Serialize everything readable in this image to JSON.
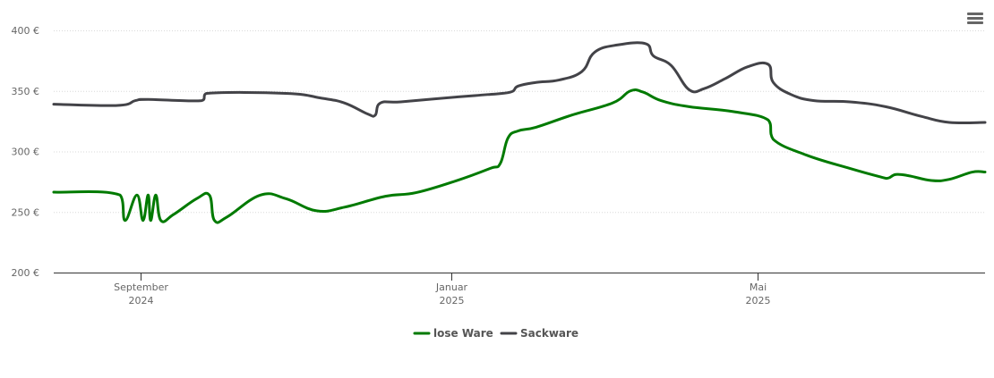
{
  "chart_data": {
    "type": "line",
    "title": "",
    "xlabel": "",
    "ylabel": "",
    "y_unit": "€",
    "ylim": [
      200,
      400
    ],
    "yticks": [
      200,
      250,
      300,
      350,
      400
    ],
    "ytick_labels": [
      "200 €",
      "250 €",
      "300 €",
      "350 €",
      "400 €"
    ],
    "xlim": [
      "2024-07-29",
      "2025-07-29"
    ],
    "xticks": [
      {
        "date": "2024-09-01",
        "month": "September",
        "year": "2024"
      },
      {
        "date": "2025-01-01",
        "month": "Januar",
        "year": "2025"
      },
      {
        "date": "2025-05-01",
        "month": "Mai",
        "year": "2025"
      }
    ],
    "grid": true,
    "legend_position": "bottom-center",
    "x_unit": "days since 2024-09-01",
    "series": [
      {
        "name": "lose Ware",
        "color": "#007a00",
        "points": [
          [
            -34,
            266.4
          ],
          [
            -8,
            264
          ],
          [
            -6,
            243
          ],
          [
            -1.4,
            264
          ],
          [
            1,
            243
          ],
          [
            3,
            264
          ],
          [
            4,
            243
          ],
          [
            6,
            264
          ],
          [
            8,
            243
          ],
          [
            13,
            248
          ],
          [
            22,
            261
          ],
          [
            27,
            264
          ],
          [
            29,
            243
          ],
          [
            34,
            246
          ],
          [
            47,
            264
          ],
          [
            57,
            261
          ],
          [
            69,
            251
          ],
          [
            80,
            254
          ],
          [
            96,
            263
          ],
          [
            108,
            266
          ],
          [
            124,
            276
          ],
          [
            137,
            286
          ],
          [
            141,
            290
          ],
          [
            144,
            311
          ],
          [
            148,
            317
          ],
          [
            155,
            320
          ],
          [
            169,
            330
          ],
          [
            185,
            340
          ],
          [
            192,
            350
          ],
          [
            197,
            349
          ],
          [
            204,
            342
          ],
          [
            215,
            337
          ],
          [
            232,
            333
          ],
          [
            246,
            326
          ],
          [
            248,
            310
          ],
          [
            261,
            297
          ],
          [
            278,
            286
          ],
          [
            290,
            279
          ],
          [
            293,
            278
          ],
          [
            296,
            281
          ],
          [
            301,
            280
          ],
          [
            310,
            276
          ],
          [
            317,
            277
          ],
          [
            326,
            283
          ],
          [
            331,
            283
          ]
        ]
      },
      {
        "name": "Sackware",
        "color": "#434348",
        "points": [
          [
            -34,
            339
          ],
          [
            -9,
            338
          ],
          [
            -2,
            342
          ],
          [
            3,
            343
          ],
          [
            24,
            342
          ],
          [
            26,
            348
          ],
          [
            57,
            348
          ],
          [
            71,
            344
          ],
          [
            80,
            340
          ],
          [
            89,
            331
          ],
          [
            92,
            330
          ],
          [
            94,
            340
          ],
          [
            102,
            341
          ],
          [
            124,
            345
          ],
          [
            136,
            347
          ],
          [
            145,
            349
          ],
          [
            148,
            354
          ],
          [
            155,
            357
          ],
          [
            164,
            359
          ],
          [
            173,
            366
          ],
          [
            178,
            382
          ],
          [
            187,
            388
          ],
          [
            198,
            389
          ],
          [
            201,
            379
          ],
          [
            208,
            371
          ],
          [
            215,
            351
          ],
          [
            221,
            352
          ],
          [
            229,
            360
          ],
          [
            238,
            370
          ],
          [
            246,
            372
          ],
          [
            248,
            357
          ],
          [
            255,
            347
          ],
          [
            264,
            342
          ],
          [
            278,
            341
          ],
          [
            292,
            337
          ],
          [
            306,
            329
          ],
          [
            317,
            324
          ],
          [
            331,
            324
          ]
        ]
      }
    ]
  },
  "menu": {
    "icon": "hamburger-menu-icon"
  }
}
